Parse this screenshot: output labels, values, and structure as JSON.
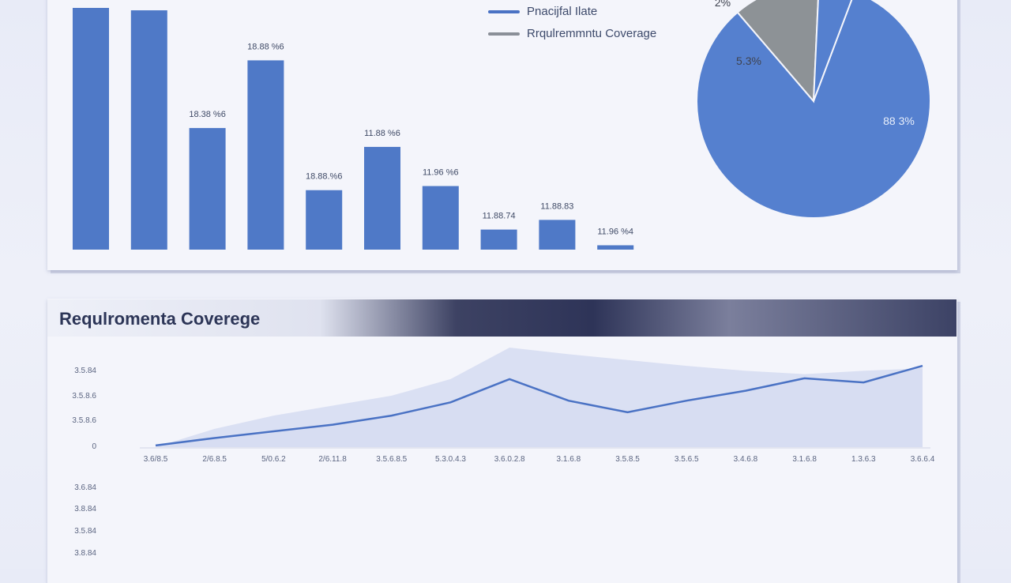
{
  "colors": {
    "bar": "#4f79c7",
    "pie_main": "#5580cf",
    "pie_slice": "#8d9296",
    "line": "#4a72c4",
    "area": "#c5cdec"
  },
  "chart_data": [
    {
      "type": "bar",
      "values": [
        100,
        99,
        50.3,
        78.3,
        24.6,
        42.5,
        26.3,
        8.3,
        12.3,
        1.8
      ],
      "data_labels": [
        "",
        "",
        "18.38 %6",
        "18.88 %6",
        "18.88.%6",
        "11.88 %6",
        "11.96 %6",
        "11.88.74",
        "11.88.83",
        "11.96 %4"
      ],
      "ylim": [
        0,
        100
      ]
    },
    {
      "type": "pie",
      "slices": [
        {
          "label": "88 3%",
          "value": 83
        },
        {
          "label": "5.3%",
          "value": 12
        },
        {
          "label": "2%",
          "value": 5
        }
      ],
      "labels": [
        "88 3%",
        "5.3%",
        "2%"
      ]
    },
    {
      "type": "area",
      "title": "Requlromenta Coverege",
      "x": [
        "3.6/8.5",
        "2/6.8.5",
        "5/0.6.2",
        "2/6.11.8",
        "3.5.6.8.5",
        "5.3.0.4.3",
        "3.6.0.2.8",
        "3.1.6.8",
        "3.5.8.5",
        "3.5.6.5",
        "3.4.6.8",
        "3.1.6.8",
        "1.3.6.3",
        "3.6.6.4"
      ],
      "yticks": [
        "3.5.84",
        "3.5.8.6",
        "3.5.8.6",
        "0"
      ],
      "series": [
        {
          "values": [
            2,
            11,
            19,
            27,
            38,
            54,
            82,
            56,
            42,
            56,
            68,
            83,
            78,
            98
          ]
        },
        {
          "values": [
            0,
            22,
            38,
            50,
            62,
            82,
            120,
            112,
            105,
            98,
            92,
            88,
            92,
            95
          ]
        }
      ],
      "ylim": [
        0,
        120
      ],
      "extra_yticks": [
        "3.6.84",
        "3.8.84",
        "3.5.84",
        "3.8.84"
      ]
    }
  ],
  "legend": [
    {
      "label": "Pnacijfal Ilate",
      "color": "#4a72c4"
    },
    {
      "label": "Rrqulremmntu Coverage",
      "color": "#8a8f98"
    }
  ]
}
